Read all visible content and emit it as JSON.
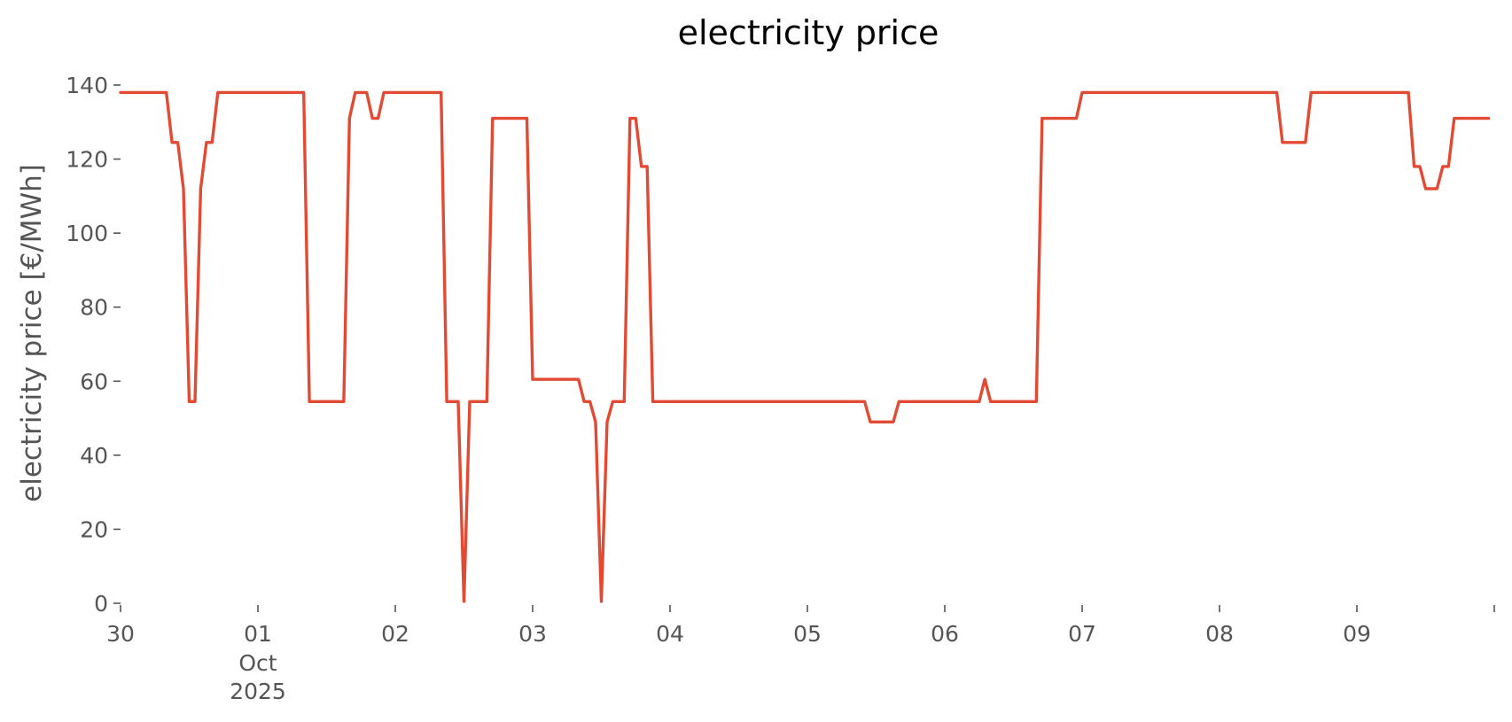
{
  "chart_data": {
    "type": "line",
    "title": "electricity price",
    "xlabel": "",
    "ylabel": "electricity price [€/MWh]",
    "ylim": [
      0,
      140
    ],
    "xlim": [
      "2025-09-30T00:00",
      "2025-10-10T00:00"
    ],
    "grid": false,
    "legend": "none",
    "line_color": "#e24a33",
    "y_ticks": [
      0,
      20,
      40,
      60,
      80,
      100,
      120,
      140
    ],
    "x_ticks": [
      {
        "x": "2025-09-30T00:00",
        "label": "30",
        "sub": [
          "",
          ""
        ]
      },
      {
        "x": "2025-10-01T00:00",
        "label": "01",
        "sub": [
          "Oct",
          "2025"
        ]
      },
      {
        "x": "2025-10-02T00:00",
        "label": "02",
        "sub": [
          "",
          ""
        ]
      },
      {
        "x": "2025-10-03T00:00",
        "label": "03",
        "sub": [
          "",
          ""
        ]
      },
      {
        "x": "2025-10-04T00:00",
        "label": "04",
        "sub": [
          "",
          ""
        ]
      },
      {
        "x": "2025-10-05T00:00",
        "label": "05",
        "sub": [
          "",
          ""
        ]
      },
      {
        "x": "2025-10-06T00:00",
        "label": "06",
        "sub": [
          "",
          ""
        ]
      },
      {
        "x": "2025-10-07T00:00",
        "label": "07",
        "sub": [
          "",
          ""
        ]
      },
      {
        "x": "2025-10-08T00:00",
        "label": "08",
        "sub": [
          "",
          ""
        ]
      },
      {
        "x": "2025-10-09T00:00",
        "label": "09",
        "sub": [
          "",
          ""
        ]
      },
      {
        "x": "2025-10-10T00:00",
        "label": "",
        "sub": [
          "",
          ""
        ]
      }
    ],
    "series": [
      {
        "x": [
          "2025-09-30T00:00",
          "2025-09-30T08:00",
          "2025-09-30T09:00",
          "2025-09-30T10:00",
          "2025-09-30T11:00",
          "2025-09-30T12:00",
          "2025-09-30T13:00",
          "2025-09-30T14:00",
          "2025-09-30T15:00",
          "2025-09-30T16:00",
          "2025-09-30T17:00",
          "2025-09-30T18:00",
          "2025-09-30T19:00",
          "2025-09-30T20:00",
          "2025-09-30T21:00",
          "2025-10-01T08:00",
          "2025-10-01T09:00",
          "2025-10-01T15:00",
          "2025-10-01T16:00",
          "2025-10-01T17:00",
          "2025-10-01T18:00",
          "2025-10-01T19:00",
          "2025-10-01T20:00",
          "2025-10-01T21:00",
          "2025-10-01T22:00",
          "2025-10-02T08:00",
          "2025-10-02T09:00",
          "2025-10-02T10:00",
          "2025-10-02T11:00",
          "2025-10-02T12:00",
          "2025-10-02T13:00",
          "2025-10-02T14:00",
          "2025-10-02T15:00",
          "2025-10-02T16:00",
          "2025-10-02T17:00",
          "2025-10-02T18:00",
          "2025-10-02T23:00",
          "2025-10-03T00:00",
          "2025-10-03T01:00",
          "2025-10-03T08:00",
          "2025-10-03T09:00",
          "2025-10-03T10:00",
          "2025-10-03T11:00",
          "2025-10-03T12:00",
          "2025-10-03T13:00",
          "2025-10-03T14:00",
          "2025-10-03T15:00",
          "2025-10-03T16:00",
          "2025-10-03T17:00",
          "2025-10-03T18:00",
          "2025-10-03T19:00",
          "2025-10-03T20:00",
          "2025-10-03T21:00",
          "2025-10-03T22:00",
          "2025-10-03T23:00",
          "2025-10-04T00:00",
          "2025-10-05T10:00",
          "2025-10-05T11:00",
          "2025-10-05T15:00",
          "2025-10-05T16:00",
          "2025-10-06T06:00",
          "2025-10-06T07:00",
          "2025-10-06T08:00",
          "2025-10-06T16:00",
          "2025-10-06T17:00",
          "2025-10-06T23:00",
          "2025-10-07T00:00",
          "2025-10-08T10:00",
          "2025-10-08T11:00",
          "2025-10-08T15:00",
          "2025-10-08T16:00",
          "2025-10-09T09:00",
          "2025-10-09T10:00",
          "2025-10-09T11:00",
          "2025-10-09T12:00",
          "2025-10-09T14:00",
          "2025-10-09T15:00",
          "2025-10-09T16:00",
          "2025-10-09T17:00",
          "2025-10-09T23:00"
        ],
        "values": [
          138,
          138,
          124.5,
          124.5,
          112,
          54.5,
          54.5,
          112,
          124.5,
          124.5,
          138,
          138,
          138,
          138,
          138,
          138,
          54.5,
          54.5,
          131,
          138,
          138,
          138,
          131,
          131,
          138,
          138,
          54.5,
          54.5,
          54.5,
          0.5,
          54.5,
          54.5,
          54.5,
          54.5,
          131,
          131,
          131,
          60.5,
          60.5,
          60.5,
          54.5,
          54.5,
          49,
          0.5,
          49,
          54.5,
          54.5,
          54.5,
          131,
          131,
          118,
          118,
          54.5,
          54.5,
          54.5,
          54.5,
          54.5,
          49,
          49,
          54.5,
          54.5,
          60.5,
          54.5,
          54.5,
          131,
          131,
          138,
          138,
          124.5,
          124.5,
          138,
          138,
          118,
          118,
          112,
          112,
          118,
          118,
          131,
          131
        ]
      }
    ]
  }
}
